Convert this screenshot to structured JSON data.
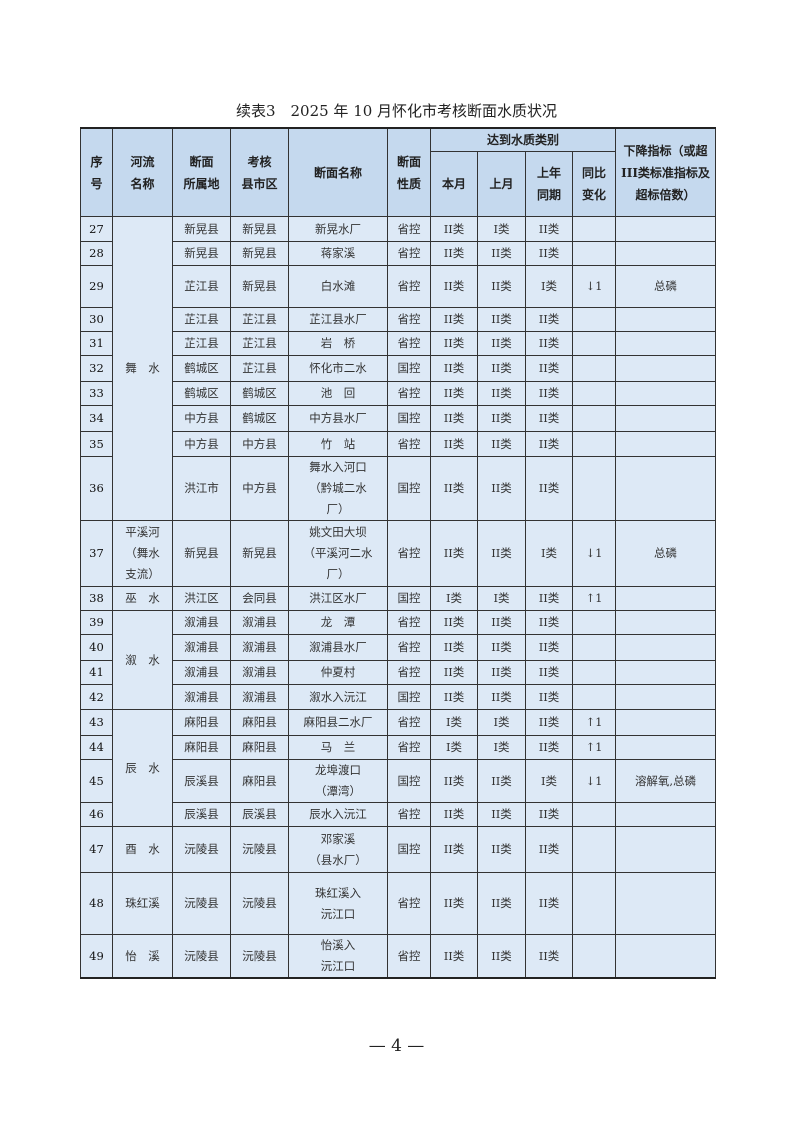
{
  "title": "续表3　2025 年 10 月怀化市考核断面水质状况",
  "headers": {
    "no": "序\n号",
    "river": "河流\n名称",
    "location": "断面\n所属地",
    "county": "考核\n县市区",
    "name": "断面名称",
    "nature": "断面\n性质",
    "group": "达到水质类别",
    "this_month": "本月",
    "last_month": "上月",
    "last_year": "上年\n同期",
    "change": "同比\n变化",
    "indicator": "下降指标（或超III类标准指标及超标倍数）"
  },
  "groups": [
    {
      "river": "舞　水",
      "rows": [
        [
          "27",
          "新晃县",
          "新晃县",
          "新晃水厂",
          "省控",
          "II类",
          "I类",
          "II类",
          "",
          ""
        ],
        [
          "28",
          "新晃县",
          "新晃县",
          "蒋家溪",
          "省控",
          "II类",
          "II类",
          "II类",
          "",
          ""
        ],
        [
          "29",
          "芷江县",
          "新晃县",
          "白水滩",
          "省控",
          "II类",
          "II类",
          "I类",
          "↓1",
          "总磷"
        ],
        [
          "30",
          "芷江县",
          "芷江县",
          "芷江县水厂",
          "省控",
          "II类",
          "II类",
          "II类",
          "",
          ""
        ],
        [
          "31",
          "芷江县",
          "芷江县",
          "岩　桥",
          "省控",
          "II类",
          "II类",
          "II类",
          "",
          ""
        ],
        [
          "32",
          "鹤城区",
          "芷江县",
          "怀化市二水",
          "国控",
          "II类",
          "II类",
          "II类",
          "",
          ""
        ],
        [
          "33",
          "鹤城区",
          "鹤城区",
          "池　回",
          "省控",
          "II类",
          "II类",
          "II类",
          "",
          ""
        ],
        [
          "34",
          "中方县",
          "鹤城区",
          "中方县水厂",
          "国控",
          "II类",
          "II类",
          "II类",
          "",
          ""
        ],
        [
          "35",
          "中方县",
          "中方县",
          "竹　站",
          "省控",
          "II类",
          "II类",
          "II类",
          "",
          ""
        ],
        [
          "36",
          "洪江市",
          "中方县",
          "舞水入河口\n（黔城二水\n厂）",
          "国控",
          "II类",
          "II类",
          "II类",
          "",
          ""
        ]
      ]
    },
    {
      "river": "平溪河\n（舞水\n支流）",
      "rows": [
        [
          "37",
          "新晃县",
          "新晃县",
          "姚文田大坝\n（平溪河二水\n厂）",
          "省控",
          "II类",
          "II类",
          "I类",
          "↓1",
          "总磷"
        ]
      ]
    },
    {
      "river": "巫　水",
      "rows": [
        [
          "38",
          "洪江区",
          "会同县",
          "洪江区水厂",
          "国控",
          "I类",
          "I类",
          "II类",
          "↑1",
          ""
        ]
      ]
    },
    {
      "river": "溆　水",
      "rows": [
        [
          "39",
          "溆浦县",
          "溆浦县",
          "龙　潭",
          "省控",
          "II类",
          "II类",
          "II类",
          "",
          ""
        ],
        [
          "40",
          "溆浦县",
          "溆浦县",
          "溆浦县水厂",
          "省控",
          "II类",
          "II类",
          "II类",
          "",
          ""
        ],
        [
          "41",
          "溆浦县",
          "溆浦县",
          "仲夏村",
          "省控",
          "II类",
          "II类",
          "II类",
          "",
          ""
        ],
        [
          "42",
          "溆浦县",
          "溆浦县",
          "溆水入沅江",
          "国控",
          "II类",
          "II类",
          "II类",
          "",
          ""
        ]
      ]
    },
    {
      "river": "辰　水",
      "rows": [
        [
          "43",
          "麻阳县",
          "麻阳县",
          "麻阳县二水厂",
          "省控",
          "I类",
          "I类",
          "II类",
          "↑1",
          ""
        ],
        [
          "44",
          "麻阳县",
          "麻阳县",
          "马　兰",
          "省控",
          "I类",
          "I类",
          "II类",
          "↑1",
          ""
        ],
        [
          "45",
          "辰溪县",
          "麻阳县",
          "龙埠渡口\n（潭湾）",
          "国控",
          "II类",
          "II类",
          "I类",
          "↓1",
          "溶解氧,总磷"
        ],
        [
          "46",
          "辰溪县",
          "辰溪县",
          "辰水入沅江",
          "省控",
          "II类",
          "II类",
          "II类",
          "",
          ""
        ]
      ]
    },
    {
      "river": "酉　水",
      "rows": [
        [
          "47",
          "沅陵县",
          "沅陵县",
          "邓家溪\n（县水厂）",
          "国控",
          "II类",
          "II类",
          "II类",
          "",
          ""
        ]
      ]
    },
    {
      "river": "珠红溪",
      "rows": [
        [
          "48",
          "沅陵县",
          "沅陵县",
          "珠红溪入\n沅江口",
          "省控",
          "II类",
          "II类",
          "II类",
          "",
          ""
        ]
      ]
    },
    {
      "river": "怡　溪",
      "rows": [
        [
          "49",
          "沅陵县",
          "沅陵县",
          "怡溪入\n沅江口",
          "省控",
          "II类",
          "II类",
          "II类",
          "",
          ""
        ]
      ]
    }
  ],
  "page_number": "— 4 —"
}
